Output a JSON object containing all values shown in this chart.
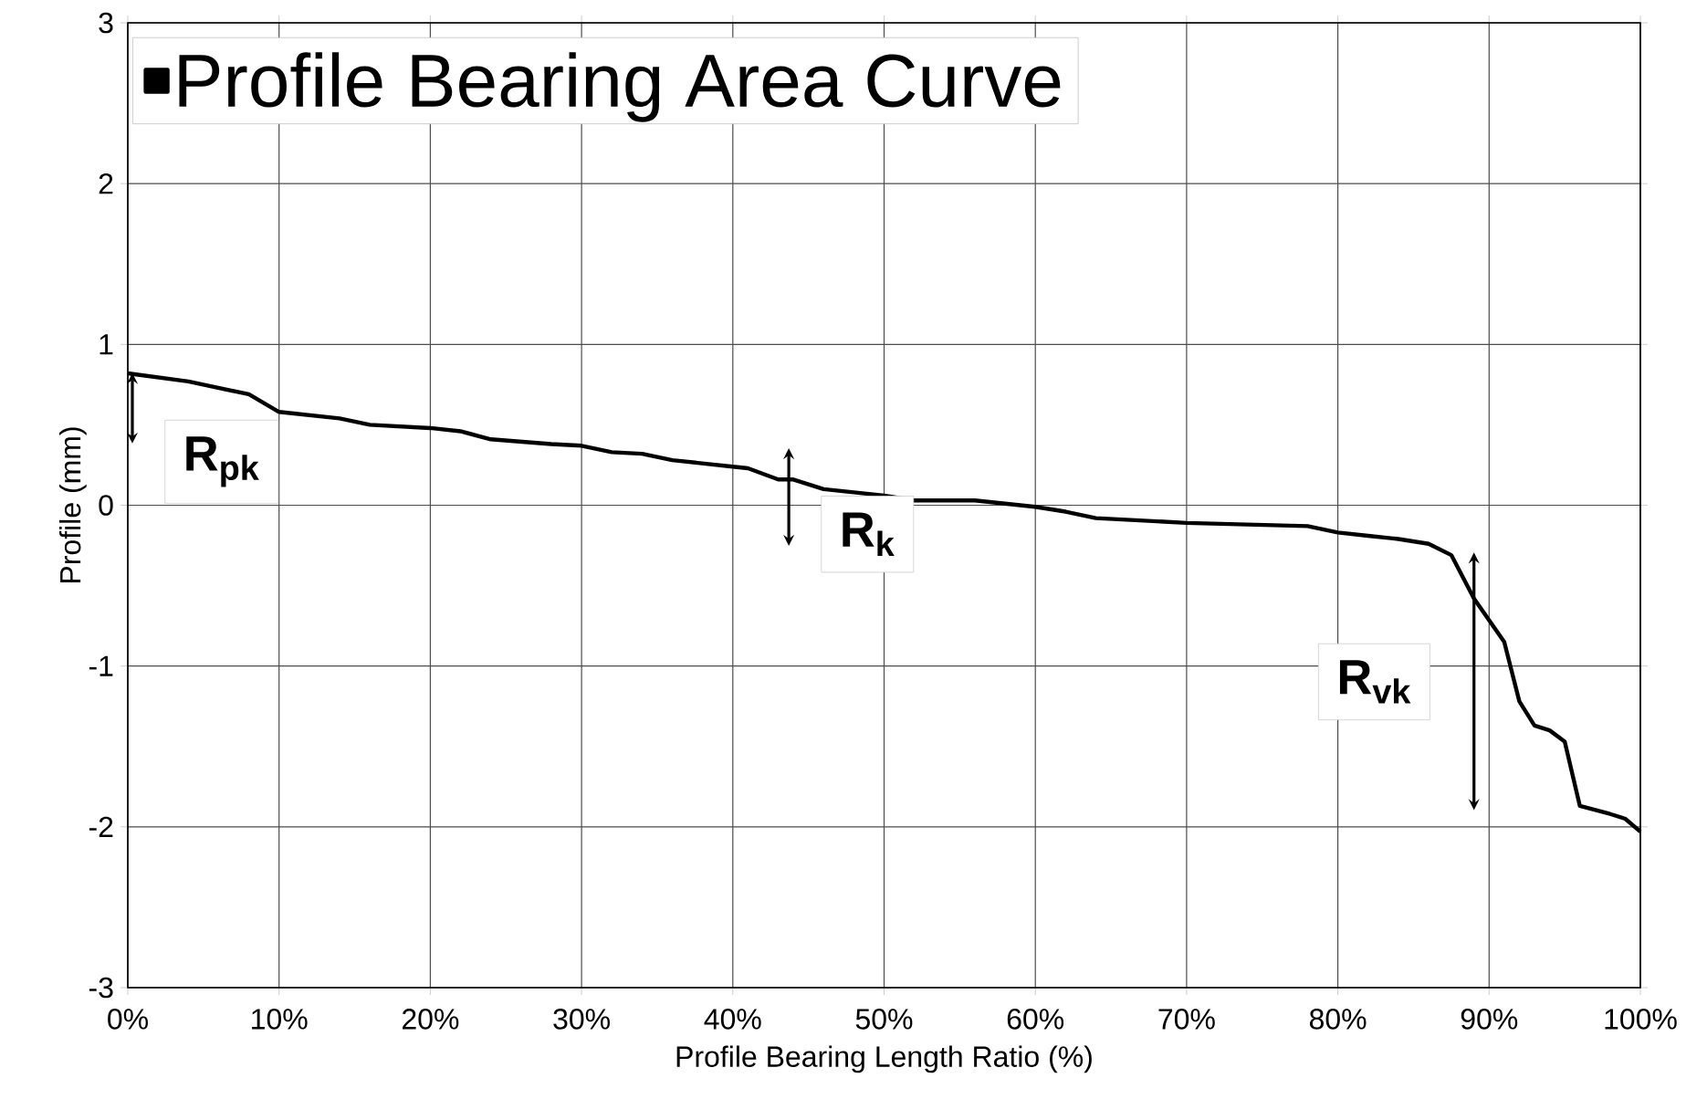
{
  "chart_data": {
    "type": "line",
    "xlabel": "Profile Bearing Length Ratio (%)",
    "ylabel": "Profile (mm)",
    "x": [
      0,
      4,
      8,
      10,
      14,
      16,
      20,
      22,
      24,
      28,
      30,
      32,
      34,
      36,
      40,
      41,
      43,
      44,
      46,
      50,
      52,
      56,
      60,
      62,
      64,
      70,
      74,
      78,
      80,
      82,
      84,
      86,
      87.5,
      89,
      91,
      92,
      93,
      94,
      95,
      96,
      98,
      99,
      100
    ],
    "series": [
      {
        "name": "Profile Bearing Area Curve",
        "color": "#000000",
        "values": [
          0.82,
          0.77,
          0.69,
          0.58,
          0.54,
          0.5,
          0.48,
          0.46,
          0.41,
          0.38,
          0.37,
          0.33,
          0.32,
          0.28,
          0.24,
          0.23,
          0.16,
          0.16,
          0.1,
          0.06,
          0.03,
          0.03,
          -0.01,
          -0.04,
          -0.08,
          -0.11,
          -0.12,
          -0.13,
          -0.17,
          -0.19,
          -0.21,
          -0.24,
          -0.31,
          -0.58,
          -0.85,
          -1.22,
          -1.37,
          -1.4,
          -1.47,
          -1.87,
          -1.92,
          -1.95,
          -2.03
        ]
      }
    ],
    "xlim": [
      0,
      100
    ],
    "ylim": [
      -3,
      3
    ],
    "xticks": [
      {
        "value": 0,
        "label": "0%"
      },
      {
        "value": 10,
        "label": "10%"
      },
      {
        "value": 20,
        "label": "20%"
      },
      {
        "value": 30,
        "label": "30%"
      },
      {
        "value": 40,
        "label": "40%"
      },
      {
        "value": 50,
        "label": "50%"
      },
      {
        "value": 60,
        "label": "60%"
      },
      {
        "value": 70,
        "label": "70%"
      },
      {
        "value": 80,
        "label": "80%"
      },
      {
        "value": 90,
        "label": "90%"
      },
      {
        "value": 100,
        "label": "100%"
      }
    ],
    "yticks": [
      -3,
      -2,
      -1,
      0,
      1,
      2,
      3
    ],
    "annotations": [
      "R$_{pk}$",
      "R$_{k}$",
      "R$_{vk}$"
    ],
    "grid": true,
    "legend": "top left",
    "marker": "none",
    "line_style": "solid"
  }
}
